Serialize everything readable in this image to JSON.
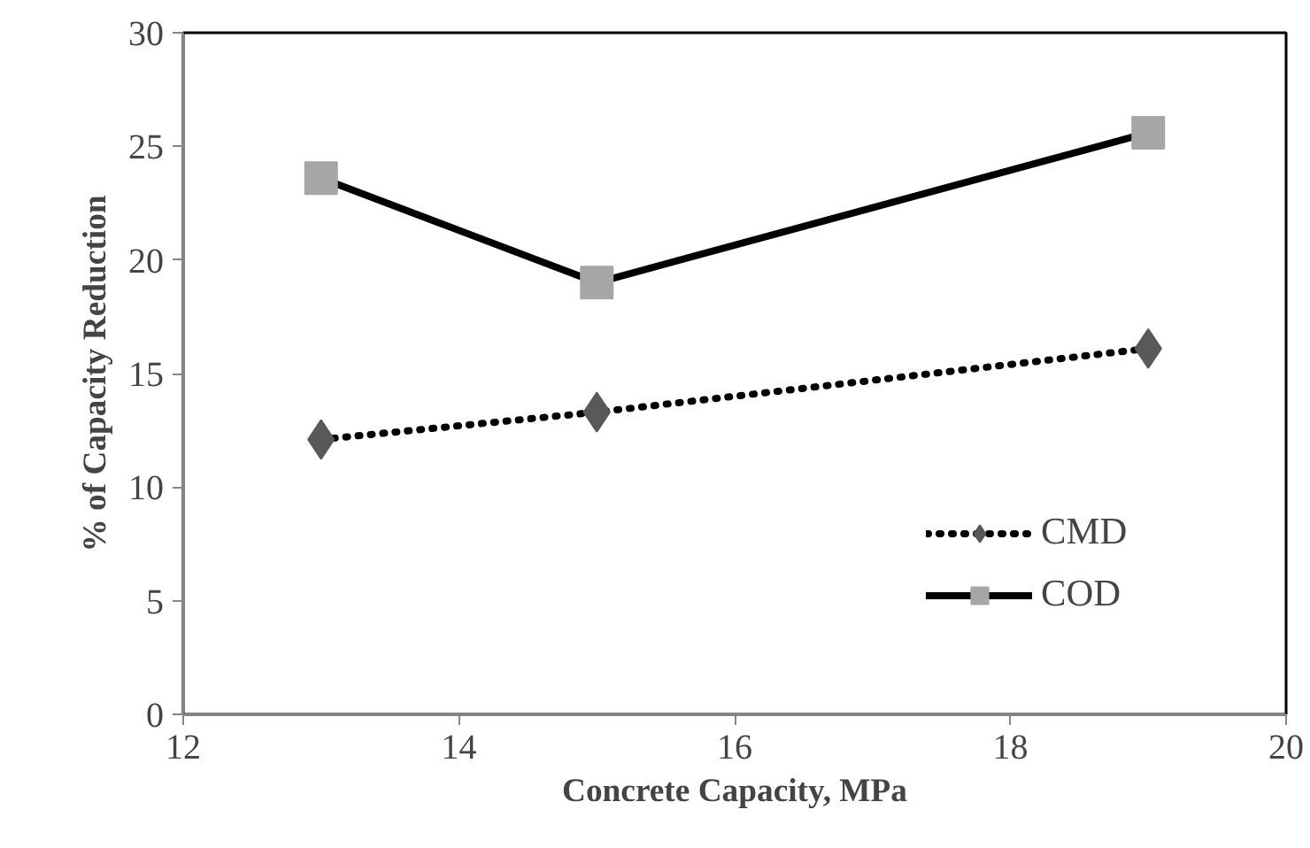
{
  "chart_data": {
    "type": "line",
    "xlabel": "Concrete Capacity, MPa",
    "ylabel": "% of Capacity Reduction",
    "x": [
      13,
      15,
      19
    ],
    "series": [
      {
        "name": "CMD",
        "color": "#000000",
        "colors": [
          "#595959",
          "#595959",
          "#595959"
        ],
        "values": [
          12.1,
          13.3,
          16.1
        ],
        "marker": "diamond",
        "line_style": "dotted"
      },
      {
        "name": "COD",
        "color": "#000000",
        "colors": [
          "#a6a6a6",
          "#a6a6a6",
          "#a6a6a6"
        ],
        "values": [
          23.6,
          19.0,
          25.6
        ],
        "marker": "square",
        "line_style": "solid"
      }
    ],
    "xlim": [
      12,
      20
    ],
    "xticks": [
      12,
      14,
      16,
      18,
      20
    ],
    "ylim": [
      0,
      30
    ],
    "yticks": [
      0,
      5,
      10,
      15,
      20,
      25,
      30
    ],
    "grid": false,
    "legend": "right"
  }
}
